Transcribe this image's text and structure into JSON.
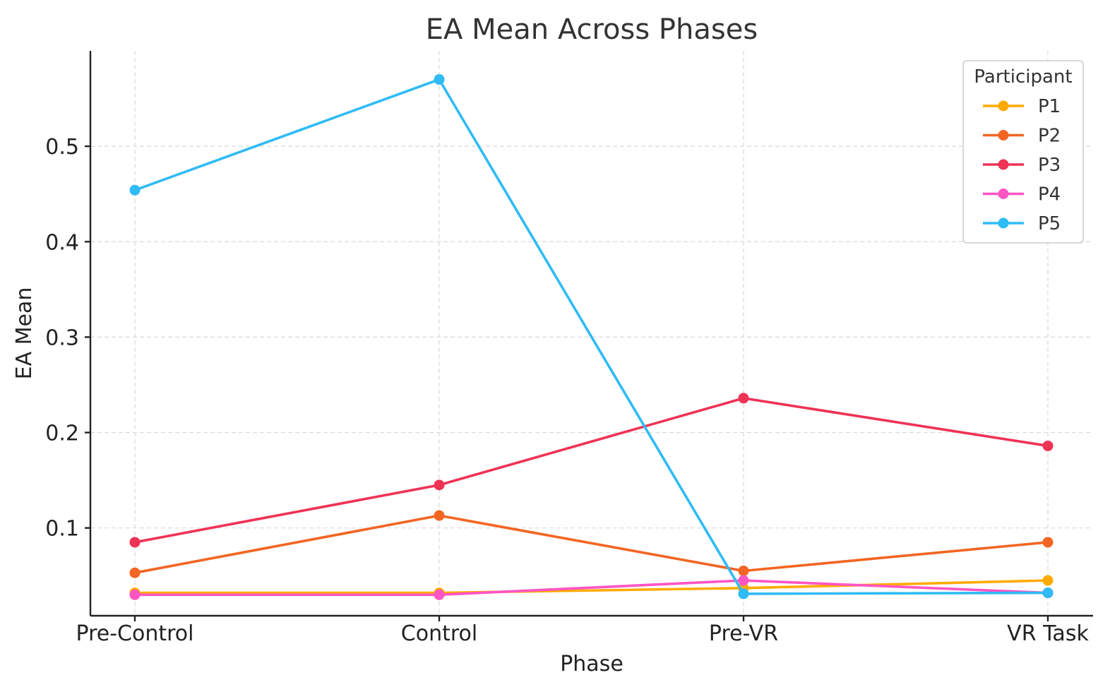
{
  "chart_data": {
    "type": "line",
    "title": "EA Mean Across Phases",
    "xlabel": "Phase",
    "ylabel": "EA Mean",
    "categories": [
      "Pre-Control",
      "Control",
      "Pre-VR",
      "VR Task"
    ],
    "ylim": [
      0.008,
      0.6
    ],
    "yticks": [
      0.1,
      0.2,
      0.3,
      0.4,
      0.5
    ],
    "ytick_labels": [
      "0.1",
      "0.2",
      "0.3",
      "0.4",
      "0.5"
    ],
    "grid": true,
    "legend": {
      "title": "Participant",
      "placement": "top-right"
    },
    "series": [
      {
        "name": "P1",
        "color": "#FFAA00",
        "values": [
          0.032,
          0.032,
          0.037,
          0.045
        ]
      },
      {
        "name": "P2",
        "color": "#F26522",
        "values": [
          0.053,
          0.113,
          0.055,
          0.085
        ]
      },
      {
        "name": "P3",
        "color": "#EE3355",
        "values": [
          0.085,
          0.145,
          0.236,
          0.186
        ]
      },
      {
        "name": "P4",
        "color": "#FF55C3",
        "values": [
          0.03,
          0.03,
          0.045,
          0.032
        ]
      },
      {
        "name": "P5",
        "color": "#2FBBF5",
        "values": [
          0.454,
          0.57,
          0.031,
          0.032
        ]
      }
    ]
  }
}
